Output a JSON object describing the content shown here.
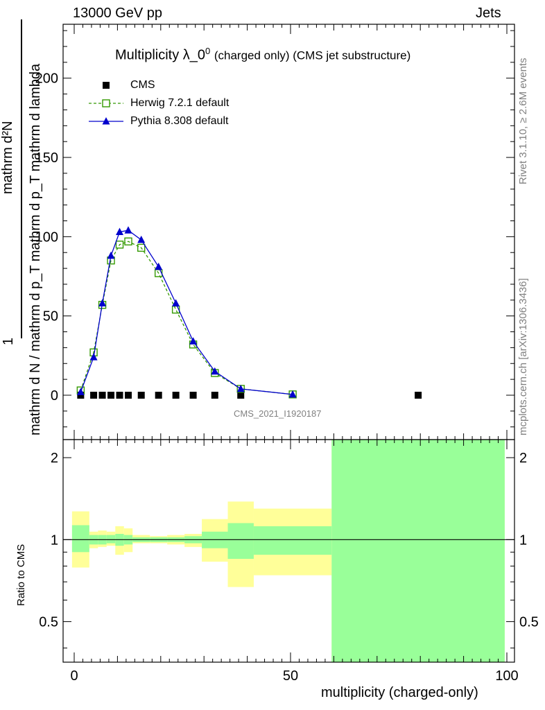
{
  "header": {
    "left": "13000 GeV pp",
    "right": "Jets"
  },
  "side_labels": {
    "rivet": "Rivet 3.1.10, ≥ 2.6M events",
    "mcplots": "mcplots.cern.ch [arXiv:1306.3436]"
  },
  "ylabel_main": {
    "numerator": "mathrm d²N",
    "denominator": "mathrm d N / mathrm d p_T mathrm d p_T mathrm d lambda",
    "prefix": "1"
  },
  "watermark": "CMS_2021_I1920187",
  "chart_data": [
    {
      "type": "line",
      "title": "Multiplicity λ_0⁰ (charged only) (CMS jet substructure)",
      "title_main": "Multiplicity λ_0",
      "title_sup": "0",
      "title_sub": "(charged only) (CMS jet substructure)",
      "xlabel": "multiplicity (charged-only)",
      "xlim": [
        -3,
        101
      ],
      "ylim": [
        -28,
        234
      ],
      "yticks": [
        0,
        50,
        100,
        150,
        200
      ],
      "legend_position": "top-left",
      "series": [
        {
          "name": "CMS",
          "marker": "square",
          "color": "#000000",
          "x": [
            1.5,
            4.5,
            6.5,
            8.5,
            10.5,
            12.5,
            15.5,
            19.5,
            23.5,
            27.5,
            32.5,
            38.5,
            79.5
          ],
          "y": [
            0,
            0,
            0,
            0,
            0,
            0,
            0,
            0,
            0,
            0,
            0,
            0,
            0
          ]
        },
        {
          "name": "Herwig 7.2.1 default",
          "marker": "open-square",
          "line": "dashed",
          "color": "#339900",
          "x": [
            1.5,
            4.5,
            6.5,
            8.5,
            10.5,
            12.5,
            15.5,
            19.5,
            23.5,
            27.5,
            32.5,
            38.5,
            50.5
          ],
          "y": [
            3,
            27,
            57,
            85,
            95,
            97,
            93,
            77,
            54,
            32,
            14,
            4,
            0.5
          ]
        },
        {
          "name": "Pythia 8.308 default",
          "marker": "triangle",
          "line": "solid",
          "color": "#0000cc",
          "x": [
            1.5,
            4.5,
            6.5,
            8.5,
            10.5,
            12.5,
            15.5,
            19.5,
            23.5,
            27.5,
            32.5,
            38.5,
            50.5
          ],
          "y": [
            2,
            24,
            58,
            88,
            103,
            104,
            98,
            81,
            58,
            34,
            15,
            4,
            0.5
          ]
        }
      ]
    },
    {
      "type": "area",
      "ylabel": "Ratio to CMS",
      "xlabel": "multiplicity (charged-only)",
      "xlim": [
        -3,
        101
      ],
      "ylim": [
        0.355,
        2.33
      ],
      "ylog": true,
      "yticks": [
        0.5,
        1,
        2
      ],
      "xticks": [
        0,
        50,
        100
      ],
      "reference_line": 1,
      "bins": [
        {
          "x0": -0.5,
          "x1": 3.5,
          "stat_lo": 0.9,
          "stat_hi": 1.13,
          "tot_lo": 0.79,
          "tot_hi": 1.27
        },
        {
          "x0": 3.5,
          "x1": 5.5,
          "stat_lo": 0.96,
          "stat_hi": 1.04,
          "tot_lo": 0.93,
          "tot_hi": 1.07
        },
        {
          "x0": 5.5,
          "x1": 7.5,
          "stat_lo": 0.96,
          "stat_hi": 1.04,
          "tot_lo": 0.94,
          "tot_hi": 1.08
        },
        {
          "x0": 7.5,
          "x1": 9.5,
          "stat_lo": 0.97,
          "stat_hi": 1.04,
          "tot_lo": 0.95,
          "tot_hi": 1.07
        },
        {
          "x0": 9.5,
          "x1": 11.5,
          "stat_lo": 0.95,
          "stat_hi": 1.05,
          "tot_lo": 0.88,
          "tot_hi": 1.12
        },
        {
          "x0": 11.5,
          "x1": 13.5,
          "stat_lo": 0.96,
          "stat_hi": 1.04,
          "tot_lo": 0.9,
          "tot_hi": 1.1
        },
        {
          "x0": 13.5,
          "x1": 17.5,
          "stat_lo": 0.98,
          "stat_hi": 1.02,
          "tot_lo": 0.97,
          "tot_hi": 1.04
        },
        {
          "x0": 17.5,
          "x1": 21.5,
          "stat_lo": 0.98,
          "stat_hi": 1.02,
          "tot_lo": 0.97,
          "tot_hi": 1.03
        },
        {
          "x0": 21.5,
          "x1": 25.5,
          "stat_lo": 0.98,
          "stat_hi": 1.02,
          "tot_lo": 0.96,
          "tot_hi": 1.04
        },
        {
          "x0": 25.5,
          "x1": 29.5,
          "stat_lo": 0.97,
          "stat_hi": 1.03,
          "tot_lo": 0.94,
          "tot_hi": 1.05
        },
        {
          "x0": 29.5,
          "x1": 35.5,
          "stat_lo": 0.93,
          "stat_hi": 1.07,
          "tot_lo": 0.83,
          "tot_hi": 1.19
        },
        {
          "x0": 35.5,
          "x1": 41.5,
          "stat_lo": 0.85,
          "stat_hi": 1.15,
          "tot_lo": 0.67,
          "tot_hi": 1.38
        },
        {
          "x0": 41.5,
          "x1": 59.5,
          "stat_lo": 0.88,
          "stat_hi": 1.12,
          "tot_lo": 0.74,
          "tot_hi": 1.3
        },
        {
          "x0": 59.5,
          "x1": 99.5,
          "stat_lo": 0.355,
          "stat_hi": 2.33,
          "tot_lo": 0.355,
          "tot_hi": 2.33
        }
      ],
      "colors": {
        "stat": "#99ff99",
        "total": "#ffff99"
      }
    }
  ]
}
